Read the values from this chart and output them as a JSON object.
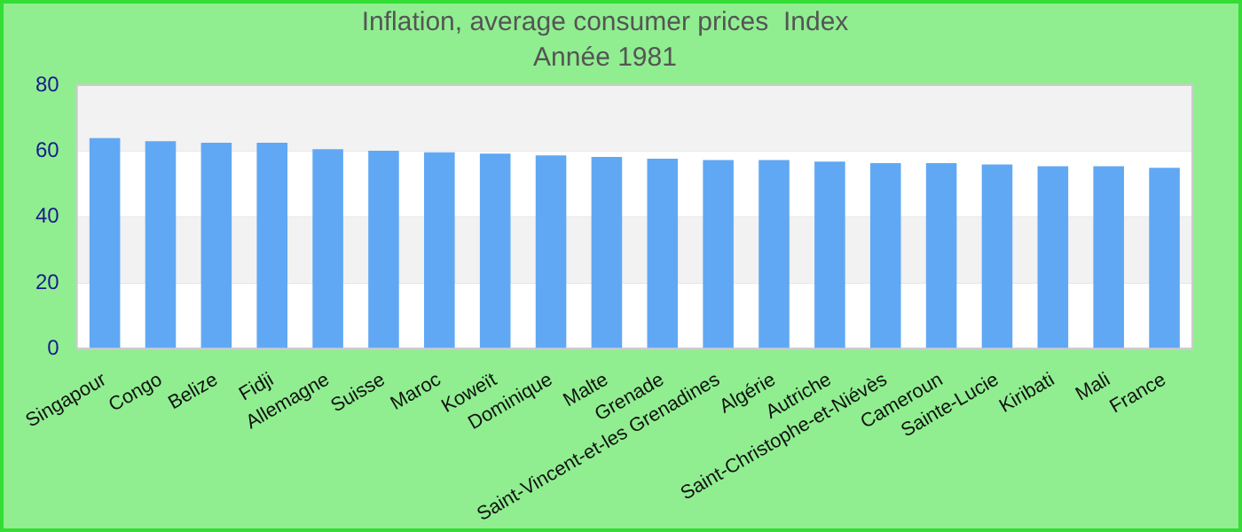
{
  "chart_data": {
    "type": "bar",
    "title": "Inflation, average consumer prices  Index",
    "subtitle": "Année 1981",
    "categories": [
      "Singapour",
      "Congo",
      "Belize",
      "Fidji",
      "Allemagne",
      "Suisse",
      "Maroc",
      "Koweït",
      "Dominique",
      "Malte",
      "Grenade",
      "Saint-Vincent-et-les Grenadines",
      "Algérie",
      "Autriche",
      "Saint-Christophe-et-Niévès",
      "Cameroun",
      "Sainte-Lucie",
      "Kiribati",
      "Mali",
      "France"
    ],
    "values": [
      63.9,
      63.0,
      62.5,
      62.5,
      60.6,
      60.1,
      59.6,
      59.2,
      58.7,
      58.2,
      57.7,
      57.3,
      57.3,
      56.8,
      56.3,
      56.3,
      55.9,
      55.4,
      55.4,
      54.9
    ],
    "color": "#60a8f4",
    "ylim": [
      0,
      80
    ],
    "yticks": [
      0,
      20,
      40,
      60,
      80
    ],
    "grid": true,
    "legend": false
  }
}
